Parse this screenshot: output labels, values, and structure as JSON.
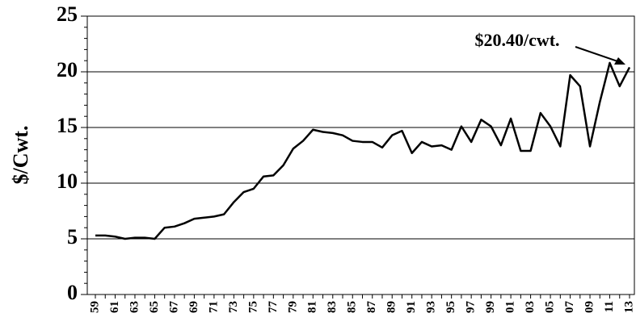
{
  "chart_data": {
    "type": "line",
    "y_label": "$/Cwt.",
    "annotation": "$20.40/cwt.",
    "categories": [
      "59",
      null,
      "61",
      null,
      "63",
      null,
      "65",
      null,
      "67",
      null,
      "69",
      null,
      "71",
      null,
      "73",
      null,
      "75",
      null,
      "77",
      null,
      "79",
      null,
      "81",
      null,
      "83",
      null,
      "85",
      null,
      "87",
      null,
      "89",
      null,
      "91",
      null,
      "93",
      null,
      "95",
      null,
      "97",
      null,
      "99",
      null,
      "01",
      null,
      "03",
      null,
      "05",
      null,
      "07",
      null,
      "09",
      null,
      "11",
      null,
      "13"
    ],
    "values": [
      5.3,
      5.3,
      5.2,
      5.0,
      5.1,
      5.1,
      5.0,
      6.0,
      6.1,
      6.4,
      6.8,
      6.9,
      7.0,
      7.2,
      8.3,
      9.2,
      9.5,
      10.6,
      10.7,
      11.6,
      13.1,
      13.8,
      14.8,
      14.6,
      14.5,
      14.3,
      13.8,
      13.7,
      13.7,
      13.2,
      14.3,
      14.7,
      12.7,
      13.7,
      13.3,
      13.4,
      13.0,
      15.1,
      13.7,
      15.7,
      15.1,
      13.4,
      15.8,
      12.9,
      12.9,
      16.3,
      15.1,
      13.3,
      19.7,
      18.7,
      13.3,
      17.3,
      20.8,
      18.7,
      20.4
    ],
    "color": "#000000",
    "ylim": [
      0,
      25
    ],
    "yticks": [
      0,
      5,
      10,
      15,
      20,
      25
    ],
    "grid": true
  }
}
